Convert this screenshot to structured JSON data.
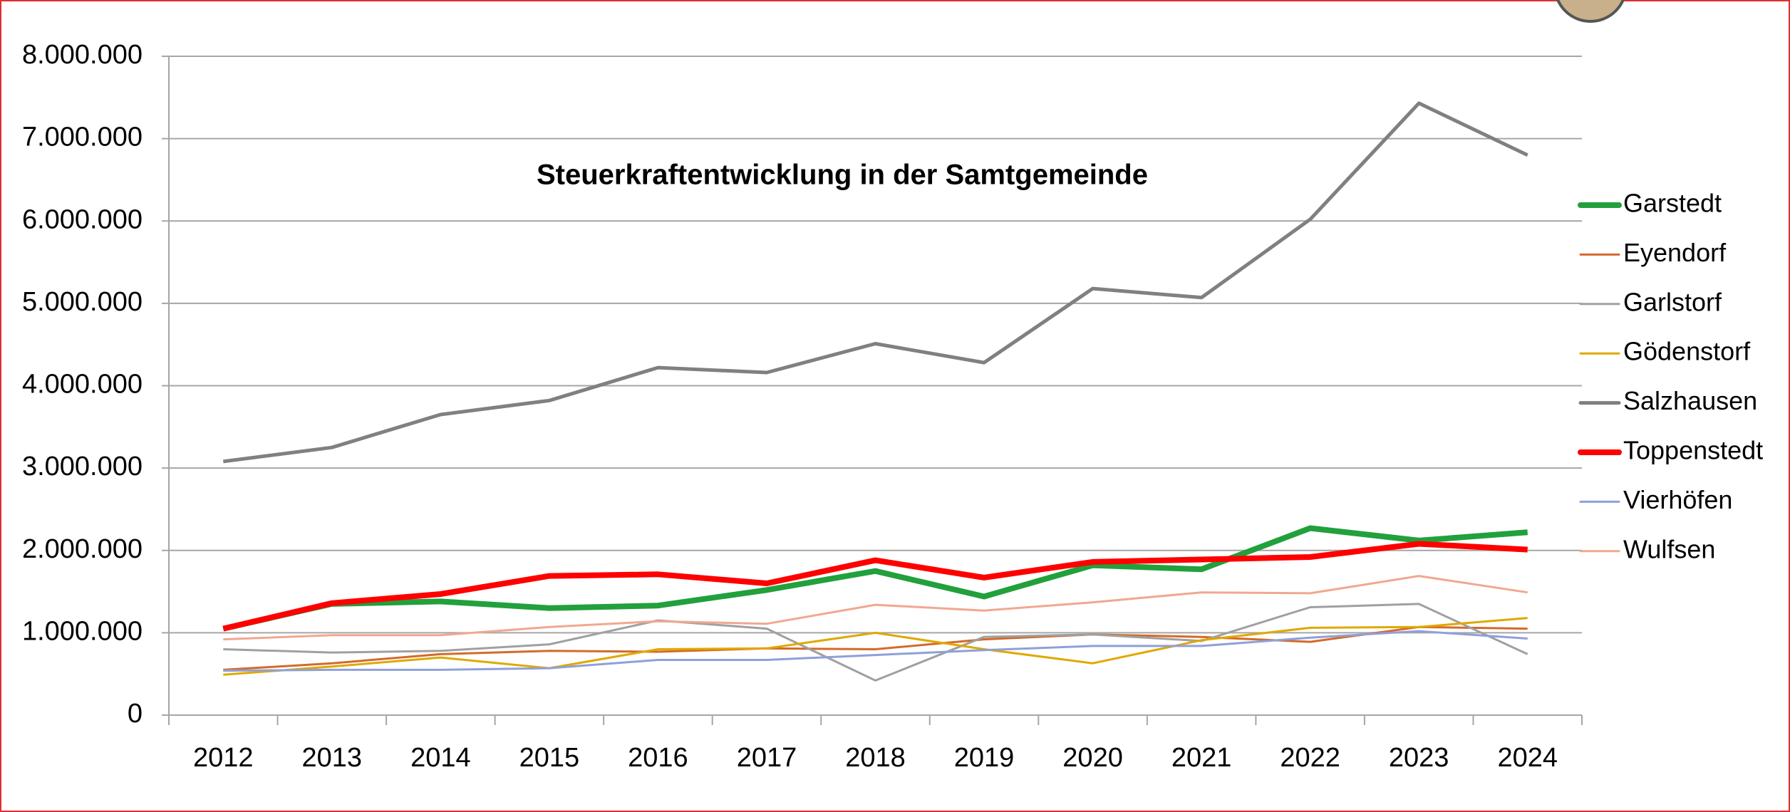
{
  "chart_data": {
    "type": "line",
    "title": "Steuerkraftentwicklung in der Samtgemeinde",
    "categories": [
      "2012",
      "2013",
      "2014",
      "2015",
      "2016",
      "2017",
      "2018",
      "2019",
      "2020",
      "2021",
      "2022",
      "2023",
      "2024"
    ],
    "series": [
      {
        "name": "Garstedt",
        "color": "#22a03c",
        "width": 8,
        "values": [
          1050000,
          1350000,
          1380000,
          1300000,
          1330000,
          1520000,
          1750000,
          1440000,
          1820000,
          1770000,
          2270000,
          2120000,
          2220000
        ]
      },
      {
        "name": "Eyendorf",
        "color": "#d46a2a",
        "width": 3,
        "values": [
          550000,
          630000,
          740000,
          780000,
          770000,
          810000,
          800000,
          920000,
          980000,
          950000,
          890000,
          1070000,
          1050000
        ]
      },
      {
        "name": "Garlstorf",
        "color": "#a0a0a0",
        "width": 3,
        "values": [
          800000,
          760000,
          780000,
          860000,
          1150000,
          1050000,
          420000,
          950000,
          980000,
          900000,
          1310000,
          1350000,
          740000
        ]
      },
      {
        "name": "Gödenstorf",
        "color": "#e0a800",
        "width": 3,
        "values": [
          490000,
          590000,
          700000,
          570000,
          800000,
          810000,
          1000000,
          800000,
          630000,
          910000,
          1060000,
          1070000,
          1180000
        ]
      },
      {
        "name": "Salzhausen",
        "color": "#808080",
        "width": 5,
        "values": [
          3080000,
          3250000,
          3650000,
          3820000,
          4220000,
          4160000,
          4510000,
          4280000,
          5180000,
          5070000,
          6020000,
          7430000,
          6800000
        ]
      },
      {
        "name": "Toppenstedt",
        "color": "#ff0000",
        "width": 8,
        "values": [
          1050000,
          1360000,
          1470000,
          1690000,
          1710000,
          1600000,
          1880000,
          1670000,
          1860000,
          1890000,
          1920000,
          2080000,
          2010000
        ]
      },
      {
        "name": "Vierhöfen",
        "color": "#8fa0d8",
        "width": 3,
        "values": [
          540000,
          550000,
          550000,
          570000,
          670000,
          670000,
          730000,
          790000,
          840000,
          840000,
          940000,
          1020000,
          930000
        ]
      },
      {
        "name": "Wulfsen",
        "color": "#f0a890",
        "width": 3,
        "values": [
          920000,
          970000,
          970000,
          1070000,
          1140000,
          1110000,
          1340000,
          1270000,
          1370000,
          1490000,
          1480000,
          1690000,
          1490000
        ]
      }
    ],
    "ylim": [
      0,
      8000000
    ],
    "yticks": [
      0,
      {
        "value": 1000000,
        "label": "1.000.000"
      },
      {
        "value": 2000000,
        "label": "2.000.000"
      },
      {
        "value": 3000000,
        "label": "3.000.000"
      },
      {
        "value": 4000000,
        "label": "4.000.000"
      },
      {
        "value": 5000000,
        "label": "5.000.000"
      },
      {
        "value": 6000000,
        "label": "6.000.000"
      },
      {
        "value": 7000000,
        "label": "7.000.000"
      },
      {
        "value": 8000000,
        "label": "8.000.000"
      }
    ],
    "grid": true,
    "legend": "right"
  }
}
